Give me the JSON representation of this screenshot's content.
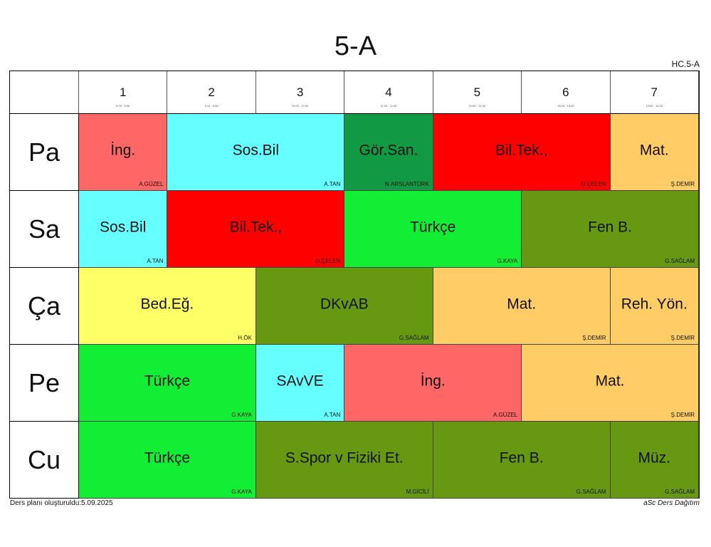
{
  "title": "5-A",
  "code": "HC.5-A",
  "periods": [
    {
      "num": "1",
      "time": "8:20 - 9:00"
    },
    {
      "num": "2",
      "time": "9:10 - 9:50"
    },
    {
      "num": "3",
      "time": "10:00 - 10:40"
    },
    {
      "num": "4",
      "time": "11:00 - 11:40"
    },
    {
      "num": "5",
      "time": "11:50 - 12:30"
    },
    {
      "num": "6",
      "time": "13:00 - 13:40"
    },
    {
      "num": "7",
      "time": "13:50 - 14:30"
    }
  ],
  "days": [
    "Pa",
    "Sa",
    "Ça",
    "Pe",
    "Cu"
  ],
  "lessons": [
    {
      "day": 0,
      "start": 1,
      "span": 1,
      "name": "İng.",
      "teacher": "A.GÜZEL",
      "color": "#ff6666"
    },
    {
      "day": 0,
      "start": 2,
      "span": 2,
      "name": "Sos.Bil",
      "teacher": "A.TAN",
      "color": "#66ffff"
    },
    {
      "day": 0,
      "start": 4,
      "span": 1,
      "name": "Gör.San.",
      "teacher": "N.ARSLANTÜRK",
      "color": "#119944"
    },
    {
      "day": 0,
      "start": 5,
      "span": 2,
      "name": "Bil.Tek.,",
      "teacher": "O.ÇELEN",
      "color": "#ff0000"
    },
    {
      "day": 0,
      "start": 7,
      "span": 1,
      "name": "Mat.",
      "teacher": "Ş.DEMİR",
      "color": "#ffcc66"
    },
    {
      "day": 1,
      "start": 1,
      "span": 1,
      "name": "Sos.Bil",
      "teacher": "A.TAN",
      "color": "#66ffff"
    },
    {
      "day": 1,
      "start": 2,
      "span": 2,
      "name": "Bil.Tek.,",
      "teacher": "O.ÇELEN",
      "color": "#ff0000"
    },
    {
      "day": 1,
      "start": 4,
      "span": 2,
      "name": "Türkçe",
      "teacher": "G.KAYA",
      "color": "#11ee33"
    },
    {
      "day": 1,
      "start": 6,
      "span": 2,
      "name": "Fen B.",
      "teacher": "G.SAĞLAM",
      "color": "#669911"
    },
    {
      "day": 2,
      "start": 1,
      "span": 2,
      "name": "Bed.Eğ.",
      "teacher": "H.ÖK",
      "color": "#ffff66"
    },
    {
      "day": 2,
      "start": 3,
      "span": 2,
      "name": "DKvAB",
      "teacher": "G.SAĞLAM",
      "color": "#669911"
    },
    {
      "day": 2,
      "start": 5,
      "span": 2,
      "name": "Mat.",
      "teacher": "Ş.DEMİR",
      "color": "#ffcc66"
    },
    {
      "day": 2,
      "start": 7,
      "span": 1,
      "name": "Reh. Yön.",
      "teacher": "Ş.DEMİR",
      "color": "#ffcc66"
    },
    {
      "day": 3,
      "start": 1,
      "span": 2,
      "name": "Türkçe",
      "teacher": "G.KAYA",
      "color": "#11ee33"
    },
    {
      "day": 3,
      "start": 3,
      "span": 1,
      "name": "SAvVE",
      "teacher": "A.TAN",
      "color": "#66ffff"
    },
    {
      "day": 3,
      "start": 4,
      "span": 2,
      "name": "İng.",
      "teacher": "A.GÜZEL",
      "color": "#ff6666"
    },
    {
      "day": 3,
      "start": 6,
      "span": 2,
      "name": "Mat.",
      "teacher": "Ş.DEMİR",
      "color": "#ffcc66"
    },
    {
      "day": 4,
      "start": 1,
      "span": 2,
      "name": "Türkçe",
      "teacher": "G.KAYA",
      "color": "#11ee33"
    },
    {
      "day": 4,
      "start": 3,
      "span": 2,
      "name": "S.Spor v Fiziki Et.",
      "teacher": "M.GİCİLİ",
      "color": "#669911"
    },
    {
      "day": 4,
      "start": 5,
      "span": 2,
      "name": "Fen B.",
      "teacher": "G.SAĞLAM",
      "color": "#669911"
    },
    {
      "day": 4,
      "start": 7,
      "span": 1,
      "name": "Müz.",
      "teacher": "G.SAĞLAM",
      "color": "#669911"
    }
  ],
  "footer": {
    "created": "Ders planı oluşturuldu:5.09.2025",
    "software": "aSc Ders Dağıtım"
  }
}
